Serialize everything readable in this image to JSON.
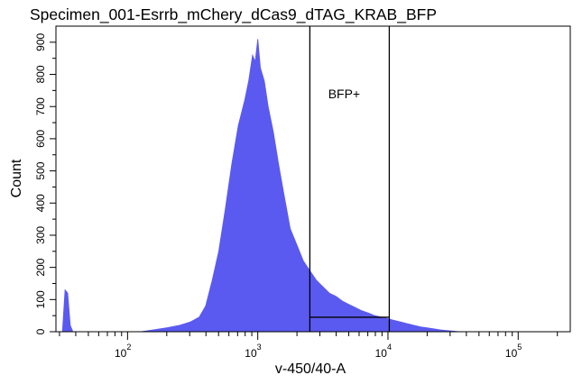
{
  "chart_data": {
    "type": "area",
    "title": "Specimen_001-Esrrb_mChery_dCas9_dTAG_KRAB_BFP",
    "xlabel": "v-450/40-A",
    "ylabel": "Count",
    "x_scale": "log",
    "xlim_log10": [
      1.45,
      5.4
    ],
    "ylim": [
      0,
      950
    ],
    "x_tick_labels": [
      {
        "label": "10",
        "exp": "2",
        "value": 100
      },
      {
        "label": "10",
        "exp": "3",
        "value": 1000
      },
      {
        "label": "10",
        "exp": "4",
        "value": 10000
      },
      {
        "label": "10",
        "exp": "5",
        "value": 100000
      }
    ],
    "y_ticks": [
      0,
      100,
      200,
      300,
      400,
      500,
      600,
      700,
      800,
      900
    ],
    "y_tick_labels": [
      "0",
      "100",
      "200",
      "300",
      "400",
      "500",
      "600",
      "700",
      "800",
      "900"
    ],
    "series": [
      {
        "color": "#5a5af0",
        "points_log10x": [
          [
            1.45,
            0
          ],
          [
            1.5,
            0
          ],
          [
            1.52,
            130
          ],
          [
            1.54,
            120
          ],
          [
            1.56,
            20
          ],
          [
            1.58,
            0
          ],
          [
            2.1,
            0
          ],
          [
            2.2,
            6
          ],
          [
            2.3,
            12
          ],
          [
            2.4,
            20
          ],
          [
            2.48,
            30
          ],
          [
            2.55,
            45
          ],
          [
            2.6,
            80
          ],
          [
            2.65,
            160
          ],
          [
            2.7,
            250
          ],
          [
            2.75,
            380
          ],
          [
            2.8,
            520
          ],
          [
            2.85,
            640
          ],
          [
            2.9,
            720
          ],
          [
            2.93,
            780
          ],
          [
            2.96,
            860
          ],
          [
            2.98,
            840
          ],
          [
            3.0,
            910
          ],
          [
            3.02,
            820
          ],
          [
            3.05,
            780
          ],
          [
            3.08,
            700
          ],
          [
            3.12,
            620
          ],
          [
            3.16,
            520
          ],
          [
            3.2,
            430
          ],
          [
            3.25,
            320
          ],
          [
            3.3,
            270
          ],
          [
            3.35,
            220
          ],
          [
            3.4,
            190
          ],
          [
            3.45,
            160
          ],
          [
            3.5,
            140
          ],
          [
            3.55,
            120
          ],
          [
            3.6,
            110
          ],
          [
            3.65,
            95
          ],
          [
            3.7,
            85
          ],
          [
            3.75,
            75
          ],
          [
            3.8,
            65
          ],
          [
            3.85,
            58
          ],
          [
            3.9,
            50
          ],
          [
            3.95,
            45
          ],
          [
            4.0,
            40
          ],
          [
            4.05,
            35
          ],
          [
            4.1,
            30
          ],
          [
            4.15,
            25
          ],
          [
            4.2,
            20
          ],
          [
            4.25,
            15
          ],
          [
            4.3,
            12
          ],
          [
            4.35,
            9
          ],
          [
            4.4,
            6
          ],
          [
            4.45,
            4
          ],
          [
            4.5,
            2
          ],
          [
            4.55,
            0
          ],
          [
            5.4,
            0
          ]
        ]
      }
    ],
    "gate": {
      "label": "BFP+",
      "x_lo": 3.4,
      "x_hi": 4.01,
      "count_line": 45
    }
  }
}
